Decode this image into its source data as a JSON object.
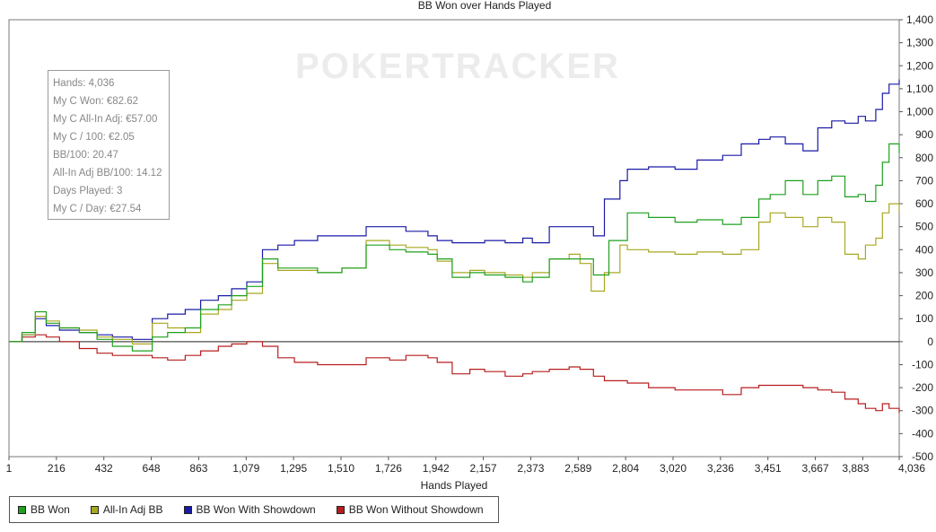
{
  "chart_data": {
    "type": "line",
    "title": "BB Won over Hands Played",
    "watermark": "POKERTRACKER",
    "xlabel": "Hands Played",
    "ylabel": "",
    "xlim": [
      1,
      4036
    ],
    "ylim": [
      -500,
      1400
    ],
    "x_tick_labels": [
      "1",
      "216",
      "432",
      "648",
      "863",
      "1,079",
      "1,295",
      "1,510",
      "1,726",
      "1,942",
      "2,157",
      "2,373",
      "2,589",
      "2,804",
      "3,020",
      "3,236",
      "3,451",
      "3,667",
      "3,883",
      "4,036"
    ],
    "y_tick_labels": [
      "1,400",
      "1,300",
      "1,200",
      "1,100",
      "1,000",
      "900",
      "800",
      "700",
      "600",
      "500",
      "400",
      "300",
      "200",
      "100",
      "0",
      "-100",
      "-200",
      "-300",
      "-400",
      "-500"
    ],
    "legend_position": "bottom-left",
    "series": [
      {
        "name": "BB Won",
        "color": "#1fa01f",
        "points": [
          [
            1,
            0
          ],
          [
            60,
            40
          ],
          [
            120,
            130
          ],
          [
            170,
            80
          ],
          [
            230,
            60
          ],
          [
            320,
            40
          ],
          [
            400,
            10
          ],
          [
            470,
            -20
          ],
          [
            560,
            -40
          ],
          [
            650,
            20
          ],
          [
            720,
            40
          ],
          [
            800,
            60
          ],
          [
            870,
            140
          ],
          [
            950,
            160
          ],
          [
            1010,
            200
          ],
          [
            1079,
            240
          ],
          [
            1150,
            360
          ],
          [
            1220,
            320
          ],
          [
            1295,
            320
          ],
          [
            1400,
            300
          ],
          [
            1510,
            320
          ],
          [
            1620,
            420
          ],
          [
            1726,
            400
          ],
          [
            1800,
            390
          ],
          [
            1900,
            380
          ],
          [
            1942,
            360
          ],
          [
            2010,
            280
          ],
          [
            2090,
            300
          ],
          [
            2157,
            290
          ],
          [
            2250,
            280
          ],
          [
            2330,
            260
          ],
          [
            2373,
            280
          ],
          [
            2450,
            360
          ],
          [
            2540,
            360
          ],
          [
            2589,
            360
          ],
          [
            2650,
            290
          ],
          [
            2720,
            440
          ],
          [
            2804,
            560
          ],
          [
            2900,
            540
          ],
          [
            3020,
            520
          ],
          [
            3120,
            530
          ],
          [
            3236,
            510
          ],
          [
            3320,
            540
          ],
          [
            3400,
            620
          ],
          [
            3451,
            640
          ],
          [
            3520,
            700
          ],
          [
            3600,
            640
          ],
          [
            3667,
            700
          ],
          [
            3730,
            720
          ],
          [
            3790,
            630
          ],
          [
            3850,
            640
          ],
          [
            3883,
            610
          ],
          [
            3930,
            680
          ],
          [
            3960,
            780
          ],
          [
            3990,
            860
          ],
          [
            4036,
            820
          ]
        ]
      },
      {
        "name": "All-In Adj BB",
        "color": "#a8a820",
        "points": [
          [
            1,
            0
          ],
          [
            60,
            30
          ],
          [
            120,
            110
          ],
          [
            170,
            90
          ],
          [
            230,
            60
          ],
          [
            320,
            50
          ],
          [
            400,
            20
          ],
          [
            470,
            10
          ],
          [
            560,
            -10
          ],
          [
            650,
            80
          ],
          [
            720,
            60
          ],
          [
            800,
            40
          ],
          [
            870,
            120
          ],
          [
            950,
            140
          ],
          [
            1010,
            180
          ],
          [
            1079,
            210
          ],
          [
            1150,
            340
          ],
          [
            1220,
            310
          ],
          [
            1295,
            310
          ],
          [
            1400,
            300
          ],
          [
            1510,
            320
          ],
          [
            1620,
            440
          ],
          [
            1726,
            420
          ],
          [
            1800,
            410
          ],
          [
            1900,
            400
          ],
          [
            1942,
            350
          ],
          [
            2010,
            300
          ],
          [
            2090,
            310
          ],
          [
            2157,
            300
          ],
          [
            2250,
            290
          ],
          [
            2330,
            280
          ],
          [
            2373,
            300
          ],
          [
            2450,
            360
          ],
          [
            2540,
            380
          ],
          [
            2589,
            340
          ],
          [
            2640,
            220
          ],
          [
            2700,
            300
          ],
          [
            2770,
            420
          ],
          [
            2804,
            400
          ],
          [
            2900,
            390
          ],
          [
            3020,
            380
          ],
          [
            3120,
            390
          ],
          [
            3236,
            380
          ],
          [
            3320,
            400
          ],
          [
            3400,
            520
          ],
          [
            3451,
            560
          ],
          [
            3520,
            540
          ],
          [
            3600,
            500
          ],
          [
            3667,
            540
          ],
          [
            3730,
            520
          ],
          [
            3790,
            380
          ],
          [
            3850,
            360
          ],
          [
            3883,
            420
          ],
          [
            3930,
            450
          ],
          [
            3960,
            560
          ],
          [
            3990,
            600
          ],
          [
            4036,
            560
          ]
        ]
      },
      {
        "name": "BB Won With Showdown",
        "color": "#1a1aa8",
        "points": [
          [
            1,
            0
          ],
          [
            60,
            30
          ],
          [
            120,
            100
          ],
          [
            170,
            70
          ],
          [
            230,
            50
          ],
          [
            320,
            40
          ],
          [
            400,
            30
          ],
          [
            470,
            20
          ],
          [
            560,
            10
          ],
          [
            650,
            100
          ],
          [
            720,
            120
          ],
          [
            800,
            140
          ],
          [
            870,
            180
          ],
          [
            950,
            200
          ],
          [
            1010,
            230
          ],
          [
            1079,
            260
          ],
          [
            1150,
            400
          ],
          [
            1220,
            420
          ],
          [
            1295,
            440
          ],
          [
            1400,
            460
          ],
          [
            1510,
            460
          ],
          [
            1620,
            500
          ],
          [
            1726,
            500
          ],
          [
            1800,
            480
          ],
          [
            1900,
            460
          ],
          [
            1942,
            440
          ],
          [
            2010,
            430
          ],
          [
            2090,
            430
          ],
          [
            2157,
            440
          ],
          [
            2250,
            430
          ],
          [
            2330,
            450
          ],
          [
            2373,
            430
          ],
          [
            2450,
            500
          ],
          [
            2540,
            500
          ],
          [
            2589,
            500
          ],
          [
            2650,
            460
          ],
          [
            2700,
            620
          ],
          [
            2770,
            700
          ],
          [
            2804,
            750
          ],
          [
            2900,
            760
          ],
          [
            3020,
            750
          ],
          [
            3120,
            790
          ],
          [
            3236,
            810
          ],
          [
            3320,
            860
          ],
          [
            3400,
            880
          ],
          [
            3451,
            890
          ],
          [
            3520,
            860
          ],
          [
            3600,
            830
          ],
          [
            3667,
            930
          ],
          [
            3730,
            960
          ],
          [
            3790,
            950
          ],
          [
            3850,
            980
          ],
          [
            3883,
            960
          ],
          [
            3930,
            1010
          ],
          [
            3960,
            1080
          ],
          [
            3990,
            1120
          ],
          [
            4036,
            1140
          ]
        ]
      },
      {
        "name": "BB Won Without Showdown",
        "color": "#b81d1d",
        "points": [
          [
            1,
            0
          ],
          [
            60,
            20
          ],
          [
            120,
            30
          ],
          [
            170,
            20
          ],
          [
            230,
            0
          ],
          [
            320,
            -30
          ],
          [
            400,
            -50
          ],
          [
            470,
            -60
          ],
          [
            560,
            -60
          ],
          [
            650,
            -70
          ],
          [
            720,
            -80
          ],
          [
            800,
            -60
          ],
          [
            870,
            -40
          ],
          [
            950,
            -20
          ],
          [
            1010,
            -10
          ],
          [
            1079,
            0
          ],
          [
            1150,
            -20
          ],
          [
            1220,
            -70
          ],
          [
            1295,
            -90
          ],
          [
            1400,
            -100
          ],
          [
            1510,
            -100
          ],
          [
            1620,
            -70
          ],
          [
            1726,
            -80
          ],
          [
            1800,
            -60
          ],
          [
            1900,
            -70
          ],
          [
            1942,
            -90
          ],
          [
            2010,
            -140
          ],
          [
            2090,
            -120
          ],
          [
            2157,
            -130
          ],
          [
            2250,
            -150
          ],
          [
            2330,
            -140
          ],
          [
            2373,
            -130
          ],
          [
            2450,
            -120
          ],
          [
            2540,
            -110
          ],
          [
            2589,
            -120
          ],
          [
            2650,
            -150
          ],
          [
            2700,
            -170
          ],
          [
            2770,
            -170
          ],
          [
            2804,
            -180
          ],
          [
            2900,
            -200
          ],
          [
            3020,
            -210
          ],
          [
            3120,
            -210
          ],
          [
            3236,
            -230
          ],
          [
            3320,
            -200
          ],
          [
            3400,
            -190
          ],
          [
            3451,
            -190
          ],
          [
            3520,
            -190
          ],
          [
            3600,
            -200
          ],
          [
            3667,
            -210
          ],
          [
            3730,
            -220
          ],
          [
            3790,
            -250
          ],
          [
            3850,
            -270
          ],
          [
            3883,
            -290
          ],
          [
            3930,
            -300
          ],
          [
            3960,
            -270
          ],
          [
            3990,
            -290
          ],
          [
            4036,
            -310
          ]
        ]
      }
    ]
  },
  "stats": [
    "Hands: 4,036",
    "My C Won: €82.62",
    "My C All-In Adj: €57.00",
    "My C / 100: €2.05",
    "BB/100: 20.47",
    "All-In Adj BB/100: 14.12",
    "Days Played: 3",
    "My C / Day: €27.54"
  ]
}
